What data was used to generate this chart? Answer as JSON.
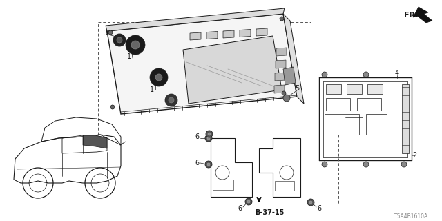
{
  "background_color": "#ffffff",
  "diagram_code": "T5A4B1610A",
  "fig_width": 6.4,
  "fig_height": 3.2,
  "dpi": 100,
  "line_color": "#1a1a1a",
  "gray": "#666666",
  "light_gray": "#aaaaaa",
  "dark": "#111111"
}
